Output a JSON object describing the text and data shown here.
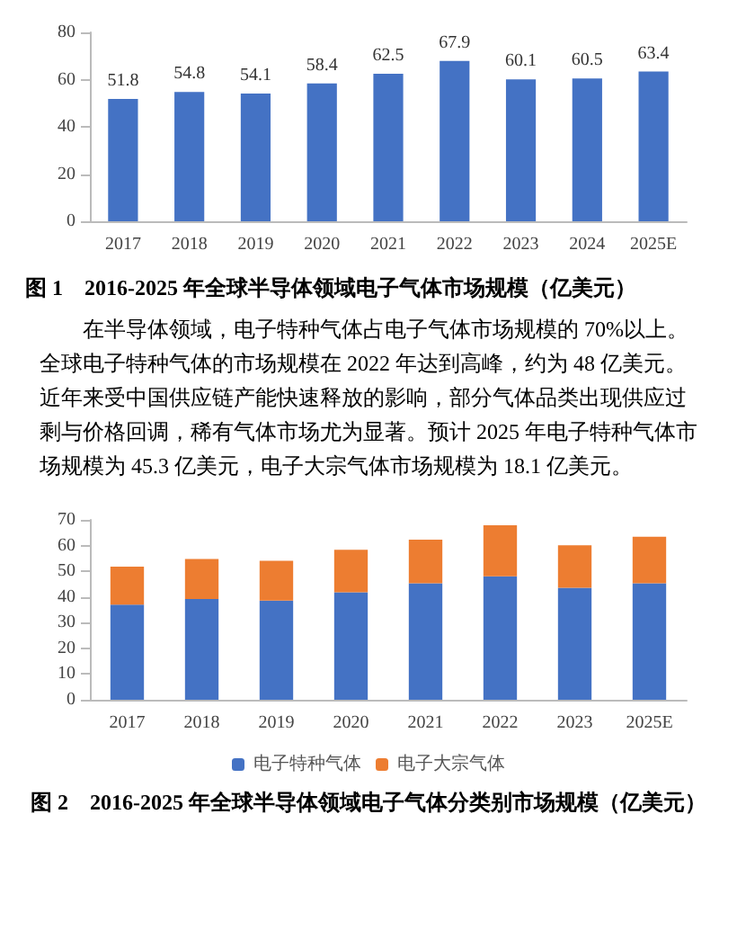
{
  "chart_data": [
    {
      "type": "bar",
      "title": "图 1　2016-2025 年全球半导体领域电子气体市场规模（亿美元）",
      "categories": [
        "2017",
        "2018",
        "2019",
        "2020",
        "2021",
        "2022",
        "2023",
        "2024",
        "2025E"
      ],
      "values": [
        51.8,
        54.8,
        54.1,
        58.4,
        62.5,
        67.9,
        60.1,
        60.5,
        63.4
      ],
      "color": "#4472c4",
      "data_labels": true,
      "ylim": [
        0,
        80
      ],
      "yticks": [
        0,
        20,
        40,
        60,
        80
      ],
      "grid": false,
      "legend": false,
      "annotations": [
        "在半导体领域，电子特种气体占电子气体市场规模的 70%以上。全球电子特种气体的市场规模在 2022 年达到高峰，约为 48 亿美元。近年来受中国供应链产能快速释放的影响，部分气体品类出现供应过剩与价格回调，稀有气体市场尤为显著。预计 2025 年电子特种气体市场规模为 45.3 亿美元，电子大宗气体市场规模为 18.1 亿美元。"
      ]
    },
    {
      "type": "bar",
      "title": "图 2　2016-2025 年全球半导体领域电子气体分类别市场规模（亿美元）",
      "categories": [
        "2017",
        "2018",
        "2019",
        "2020",
        "2021",
        "2022",
        "2023",
        "2025E"
      ],
      "stacked": true,
      "series": [
        {
          "name": "电子特种气体",
          "color": "#4472c4",
          "values": [
            37,
            39.2,
            38.6,
            41.8,
            45.3,
            48,
            43.6,
            45.3
          ]
        },
        {
          "name": "电子大宗气体",
          "color": "#ed7d31",
          "values": [
            14.8,
            15.6,
            15.5,
            16.6,
            17,
            19.9,
            16.5,
            18.1
          ]
        }
      ],
      "ylim": [
        0,
        70
      ],
      "yticks": [
        0,
        10,
        20,
        30,
        40,
        50,
        60,
        70
      ],
      "grid": false,
      "legend": "bottom"
    }
  ]
}
